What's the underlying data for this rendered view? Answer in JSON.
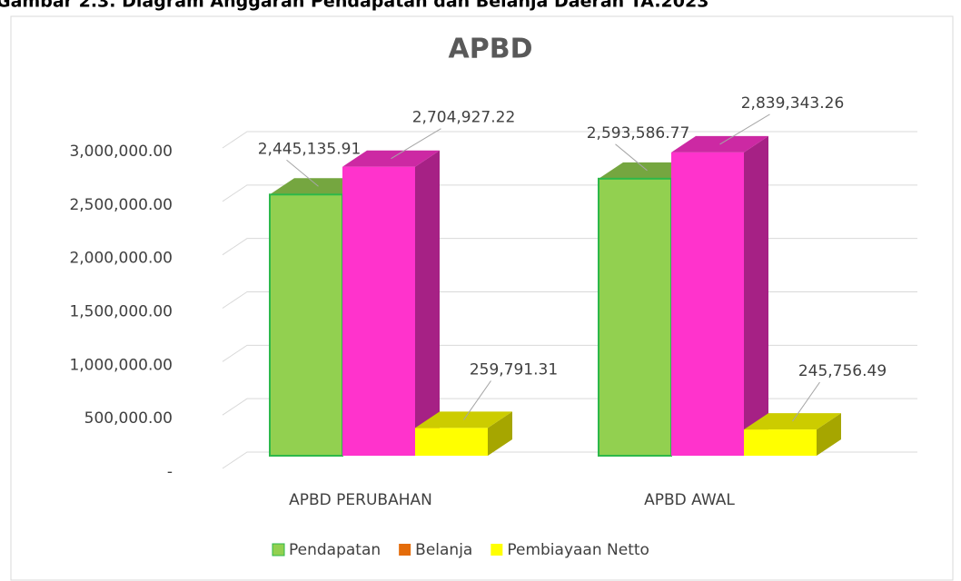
{
  "caption": "Gambar 2.3. Diagram Anggaran Pendapatan dan Belanja Daerah TA.2023",
  "chart_data": {
    "type": "bar3d",
    "title": "APBD",
    "categories": [
      "APBD PERUBAHAN",
      "APBD AWAL"
    ],
    "series": [
      {
        "name": "Pendapatan",
        "color": "#92d050",
        "legend_color": "#92d050",
        "values": [
          2445135.91,
          2593586.77
        ],
        "value_labels": [
          "2,445,135.91",
          "2,593,586.77"
        ]
      },
      {
        "name": "Belanja",
        "color": "#ff33cc",
        "legend_color": "#e46c0a",
        "values": [
          2704927.22,
          2839343.26
        ],
        "value_labels": [
          "2,704,927.22",
          "2,839,343.26"
        ]
      },
      {
        "name": "Pembiayaan Netto",
        "color": "#ffff00",
        "legend_color": "#ffff00",
        "values": [
          259791.31,
          245756.49
        ],
        "value_labels": [
          "259,791.31",
          "245,756.49"
        ]
      }
    ],
    "ylim": [
      0,
      3000000
    ],
    "yticks": [
      {
        "value": 0,
        "label": "-"
      },
      {
        "value": 500000,
        "label": "500,000.00"
      },
      {
        "value": 1000000,
        "label": "1,000,000.00"
      },
      {
        "value": 1500000,
        "label": "1,500,000.00"
      },
      {
        "value": 2000000,
        "label": "2,000,000.00"
      },
      {
        "value": 2500000,
        "label": "2,500,000.00"
      },
      {
        "value": 3000000,
        "label": "3,000,000.00"
      }
    ],
    "grid": true,
    "legend": "bottom"
  }
}
